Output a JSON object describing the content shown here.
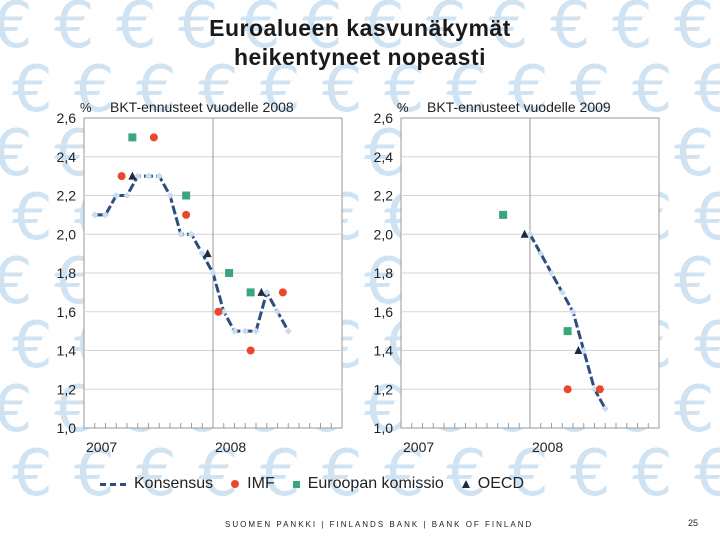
{
  "slide": {
    "title_line1": "Euroalueen kasvunäkymät",
    "title_line2": "heikentyneet nopeasti",
    "footer": "SUOMEN PANKKI | FINLANDS BANK | BANK OF FINLAND",
    "page_number": "25",
    "background_glyph": "€"
  },
  "colors": {
    "consensus": "#2d4e7e",
    "consensus_marker": "#c7dcef",
    "imf": "#e8482c",
    "ec": "#3aa57f",
    "oecd": "#1b2a3e",
    "grid": "#d3d3d3",
    "plot_bg": "#ffffff"
  },
  "legend": [
    {
      "name": "Konsensus",
      "icon": "dashed-line-icon"
    },
    {
      "name": "IMF",
      "icon": "red-dot-icon"
    },
    {
      "name": "Euroopan komissio",
      "icon": "green-square-icon"
    },
    {
      "name": "OECD",
      "icon": "triangle-icon"
    }
  ],
  "chart_data": [
    {
      "type": "line",
      "title": "BKT-ennusteet vuodelle 2008",
      "ylabel": "%",
      "ylim": [
        1.0,
        2.6
      ],
      "yticks": [
        "1,0",
        "1,2",
        "1,4",
        "1,6",
        "1,8",
        "2,0",
        "2,2",
        "2,4",
        "2,6"
      ],
      "xlim": [
        0,
        24
      ],
      "xtick_labels": [
        {
          "label": "2007",
          "x": 0
        },
        {
          "label": "2008",
          "x": 12
        }
      ],
      "year_divider_x": 12,
      "series": [
        {
          "name": "Konsensus",
          "kind": "line",
          "x": [
            1,
            2,
            3,
            4,
            5,
            6,
            7,
            8,
            9,
            10,
            11,
            12,
            13,
            14,
            15,
            16,
            17,
            18,
            19
          ],
          "y": [
            2.1,
            2.1,
            2.2,
            2.2,
            2.3,
            2.3,
            2.3,
            2.2,
            2.0,
            2.0,
            1.9,
            1.8,
            1.6,
            1.5,
            1.5,
            1.5,
            1.7,
            1.6,
            1.5
          ]
        },
        {
          "name": "IMF",
          "kind": "dot",
          "x": [
            3.5,
            6.5,
            9.5,
            12.5,
            15.5,
            18.5
          ],
          "y": [
            2.3,
            2.5,
            2.1,
            1.6,
            1.4,
            1.7
          ]
        },
        {
          "name": "Euroopan komissio",
          "kind": "square",
          "x": [
            4.5,
            9.5,
            13.5,
            15.5
          ],
          "y": [
            2.5,
            2.2,
            1.8,
            1.7
          ]
        },
        {
          "name": "OECD",
          "kind": "triangle",
          "x": [
            4.5,
            11.5,
            16.5
          ],
          "y": [
            2.3,
            1.9,
            1.7
          ]
        }
      ]
    },
    {
      "type": "line",
      "title": "BKT-ennusteet vuodelle 2009",
      "ylabel": "%",
      "ylim": [
        1.0,
        2.6
      ],
      "yticks": [
        "1,0",
        "1,2",
        "1,4",
        "1,6",
        "1,8",
        "2,0",
        "2,2",
        "2,4",
        "2,6"
      ],
      "xlim": [
        0,
        24
      ],
      "xtick_labels": [
        {
          "label": "2007",
          "x": 0
        },
        {
          "label": "2008",
          "x": 12
        }
      ],
      "year_divider_x": 12,
      "series": [
        {
          "name": "Konsensus",
          "kind": "line",
          "x": [
            12,
            13,
            14,
            15,
            16,
            17,
            18,
            19
          ],
          "y": [
            2.0,
            1.9,
            1.8,
            1.7,
            1.6,
            1.4,
            1.2,
            1.1
          ]
        },
        {
          "name": "IMF",
          "kind": "dot",
          "x": [
            15.5,
            18.5
          ],
          "y": [
            1.2,
            1.2
          ]
        },
        {
          "name": "Euroopan komissio",
          "kind": "square",
          "x": [
            9.5,
            15.5
          ],
          "y": [
            2.1,
            1.5
          ]
        },
        {
          "name": "OECD",
          "kind": "triangle",
          "x": [
            11.5,
            16.5
          ],
          "y": [
            2.0,
            1.4
          ]
        }
      ]
    }
  ]
}
